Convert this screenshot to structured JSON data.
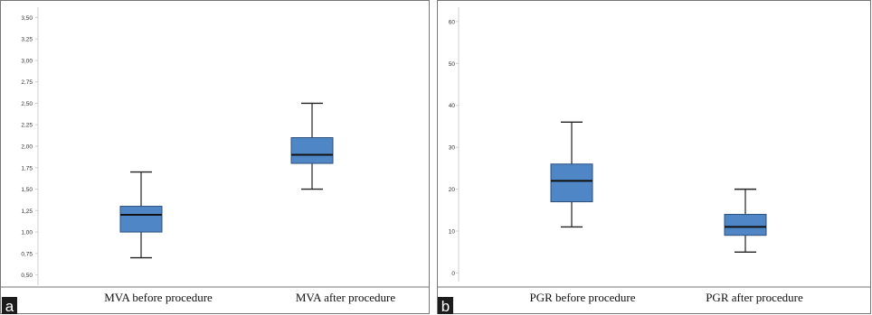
{
  "panels": [
    {
      "label": "a"
    },
    {
      "label": "b"
    }
  ],
  "chart_data": [
    {
      "type": "box",
      "ylim": [
        0.38,
        3.62
      ],
      "yticks": [
        "3,50",
        "3,25",
        "3,00",
        "2,75",
        "2,50",
        "2,25",
        "2,00",
        "1,75",
        "1,50",
        "1,25",
        "1,00",
        "0,75",
        "0,50"
      ],
      "categories": [
        "MVA before procedure",
        "MVA after procedure"
      ],
      "boxes": [
        {
          "whisker_low": 0.7,
          "q1": 1.0,
          "median": 1.2,
          "q3": 1.3,
          "whisker_high": 1.7
        },
        {
          "whisker_low": 1.5,
          "q1": 1.8,
          "median": 1.9,
          "q3": 2.1,
          "whisker_high": 2.5
        }
      ],
      "box_color": "#4f86c6",
      "grid": false
    },
    {
      "type": "box",
      "ylim": [
        -2.9,
        63.4
      ],
      "yticks": [
        "60",
        "50",
        "40",
        "30",
        "20",
        "10",
        "0"
      ],
      "categories": [
        "PGR before procedure",
        "PGR after procedure"
      ],
      "boxes": [
        {
          "whisker_low": 11,
          "q1": 17,
          "median": 22,
          "q3": 26,
          "whisker_high": 36
        },
        {
          "whisker_low": 5,
          "q1": 9,
          "median": 11,
          "q3": 14,
          "whisker_high": 20
        }
      ],
      "box_color": "#4f86c6",
      "grid": false
    }
  ]
}
